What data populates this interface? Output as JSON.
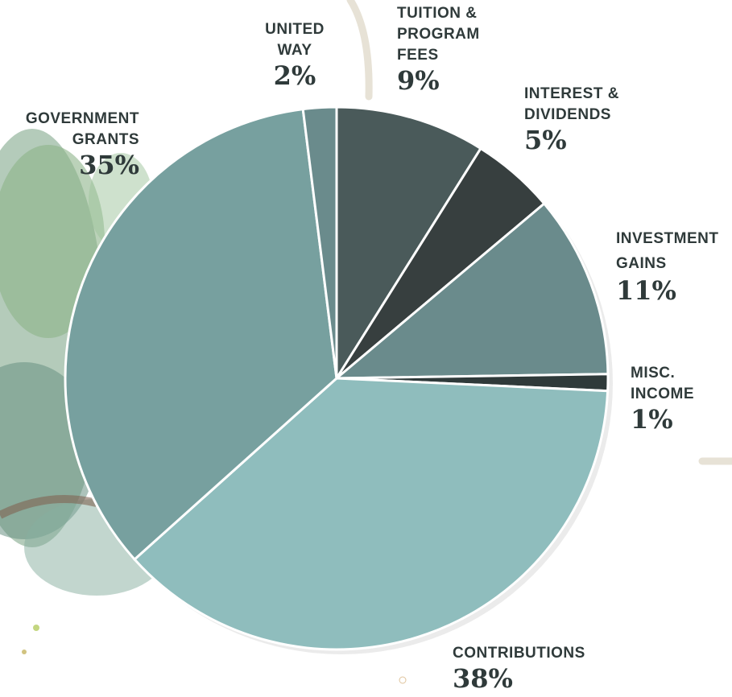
{
  "chart_data": {
    "type": "pie",
    "categories": [
      "TUITION & PROGRAM FEES",
      "INTEREST & DIVIDENDS",
      "INVESTMENT GAINS",
      "MISC. INCOME",
      "CONTRIBUTIONS",
      "GOVERNMENT GRANTS",
      "UNITED WAY"
    ],
    "values": [
      9,
      5,
      11,
      1,
      38,
      35,
      2
    ],
    "value_labels": [
      "9%",
      "5%",
      "11%",
      "1%",
      "38%",
      "35%",
      "2%"
    ],
    "colors": [
      "#4a5a5a",
      "#373f3f",
      "#6a8b8c",
      "#2f3a3a",
      "#8fbdbd",
      "#77a09f",
      "#6a8b8c"
    ]
  }
}
